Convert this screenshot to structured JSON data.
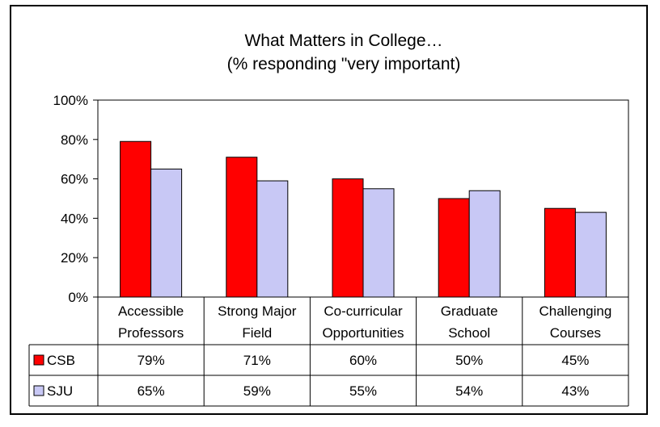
{
  "chart_data": {
    "type": "bar",
    "title": "What Matters in College…",
    "subtitle": "(% responding \"very important)",
    "categories": [
      [
        "Accessible",
        "Professors"
      ],
      [
        "Strong Major",
        "Field"
      ],
      [
        "Co-curricular",
        "Opportunities"
      ],
      [
        "Graduate",
        "School"
      ],
      [
        "Challenging",
        "Courses"
      ]
    ],
    "series": [
      {
        "name": "CSB",
        "values": [
          79,
          71,
          60,
          50,
          45
        ],
        "labels": [
          "79%",
          "71%",
          "60%",
          "50%",
          "45%"
        ],
        "color": "#ff0000"
      },
      {
        "name": "SJU",
        "values": [
          65,
          59,
          55,
          54,
          43
        ],
        "labels": [
          "65%",
          "59%",
          "55%",
          "54%",
          "43%"
        ],
        "color": "#c8c8f5"
      }
    ],
    "ylim": [
      0,
      100
    ],
    "yticks": [
      "0%",
      "20%",
      "40%",
      "60%",
      "80%",
      "100%"
    ],
    "ytick_values": [
      0,
      20,
      40,
      60,
      80,
      100
    ],
    "grid": false,
    "legend": "data-table"
  }
}
